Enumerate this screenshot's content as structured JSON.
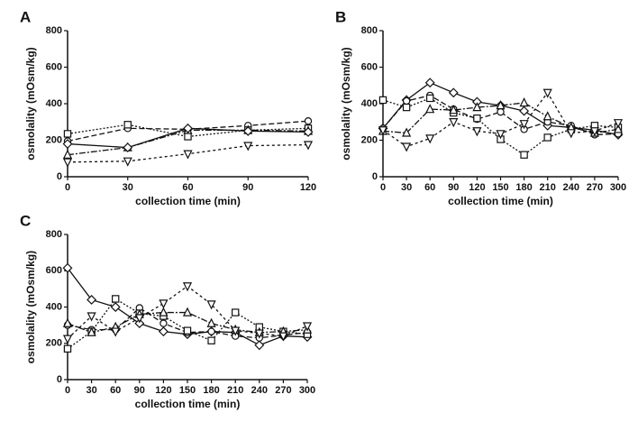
{
  "chart_data": [
    {
      "type": "line",
      "label": "A",
      "xlabel": "collection time (min)",
      "ylabel": "osmolality (mOsm/kg)",
      "x": [
        0,
        30,
        60,
        90,
        120
      ],
      "xlim": [
        0,
        120
      ],
      "xticks": [
        0,
        30,
        60,
        90,
        120
      ],
      "ylim": [
        0,
        800
      ],
      "yticks": [
        0,
        200,
        400,
        600,
        800
      ],
      "series": [
        {
          "color": "#111111",
          "marker": "circle",
          "dash": "6,3",
          "values": [
            195,
            265,
            260,
            280,
            305
          ]
        },
        {
          "color": "#111111",
          "marker": "square",
          "dash": "2,2",
          "values": [
            235,
            285,
            220,
            255,
            265
          ]
        },
        {
          "color": "#111111",
          "marker": "triangle-up",
          "dash": "7,2,2,2",
          "values": [
            120,
            160,
            255,
            255,
            250
          ]
        },
        {
          "color": "#111111",
          "marker": "triangle-down",
          "dash": "3,3",
          "values": [
            80,
            85,
            125,
            170,
            175
          ]
        },
        {
          "color": "#111111",
          "marker": "diamond",
          "dash": "none",
          "values": [
            180,
            160,
            265,
            250,
            245
          ]
        }
      ]
    },
    {
      "type": "line",
      "label": "B",
      "xlabel": "collection time (min)",
      "ylabel": "osmolality (mOsm/kg)",
      "x": [
        0,
        30,
        60,
        90,
        120,
        150,
        180,
        210,
        240,
        270,
        300
      ],
      "xlim": [
        0,
        300
      ],
      "xticks": [
        0,
        30,
        60,
        90,
        120,
        150,
        180,
        210,
        240,
        270,
        300
      ],
      "ylim": [
        0,
        800
      ],
      "yticks": [
        0,
        200,
        400,
        600,
        800
      ],
      "series": [
        {
          "color": "#111111",
          "marker": "diamond",
          "dash": "none",
          "values": [
            265,
            420,
            515,
            460,
            410,
            390,
            360,
            280,
            270,
            255,
            230
          ]
        },
        {
          "color": "#111111",
          "marker": "circle",
          "dash": "6,3",
          "values": [
            265,
            415,
            445,
            370,
            315,
            355,
            260,
            300,
            280,
            230,
            235
          ]
        },
        {
          "color": "#111111",
          "marker": "square",
          "dash": "2,2",
          "values": [
            420,
            380,
            430,
            350,
            320,
            205,
            120,
            215,
            260,
            280,
            270
          ]
        },
        {
          "color": "#111111",
          "marker": "triangle-up",
          "dash": "7,2,2,2",
          "values": [
            250,
            240,
            370,
            365,
            380,
            390,
            405,
            330,
            270,
            240,
            260
          ]
        },
        {
          "color": "#111111",
          "marker": "triangle-down",
          "dash": "3,3",
          "values": [
            255,
            165,
            210,
            300,
            250,
            235,
            290,
            460,
            240,
            250,
            295
          ]
        }
      ]
    },
    {
      "type": "line",
      "label": "C",
      "xlabel": "collection time (min)",
      "ylabel": "osmolality (mOsm/kg)",
      "x": [
        0,
        30,
        60,
        90,
        120,
        150,
        180,
        210,
        240,
        270,
        300
      ],
      "xlim": [
        0,
        300
      ],
      "xticks": [
        0,
        30,
        60,
        90,
        120,
        150,
        180,
        210,
        240,
        270,
        300
      ],
      "ylim": [
        0,
        800
      ],
      "yticks": [
        0,
        200,
        400,
        600,
        800
      ],
      "series": [
        {
          "color": "#111111",
          "marker": "diamond",
          "dash": "none",
          "values": [
            615,
            440,
            400,
            310,
            265,
            250,
            265,
            260,
            190,
            240,
            235
          ]
        },
        {
          "color": "#111111",
          "marker": "circle",
          "dash": "6,3",
          "values": [
            300,
            275,
            275,
            395,
            310,
            260,
            265,
            240,
            230,
            245,
            260
          ]
        },
        {
          "color": "#111111",
          "marker": "square",
          "dash": "2,2",
          "values": [
            170,
            265,
            445,
            365,
            350,
            270,
            215,
            370,
            290,
            265,
            250
          ]
        },
        {
          "color": "#111111",
          "marker": "triangle-up",
          "dash": "7,2,2,2",
          "values": [
            310,
            260,
            290,
            360,
            370,
            370,
            310,
            275,
            260,
            265,
            275
          ]
        },
        {
          "color": "#111111",
          "marker": "triangle-down",
          "dash": "3,3",
          "values": [
            225,
            350,
            265,
            340,
            420,
            515,
            415,
            270,
            255,
            240,
            295
          ]
        }
      ]
    }
  ]
}
